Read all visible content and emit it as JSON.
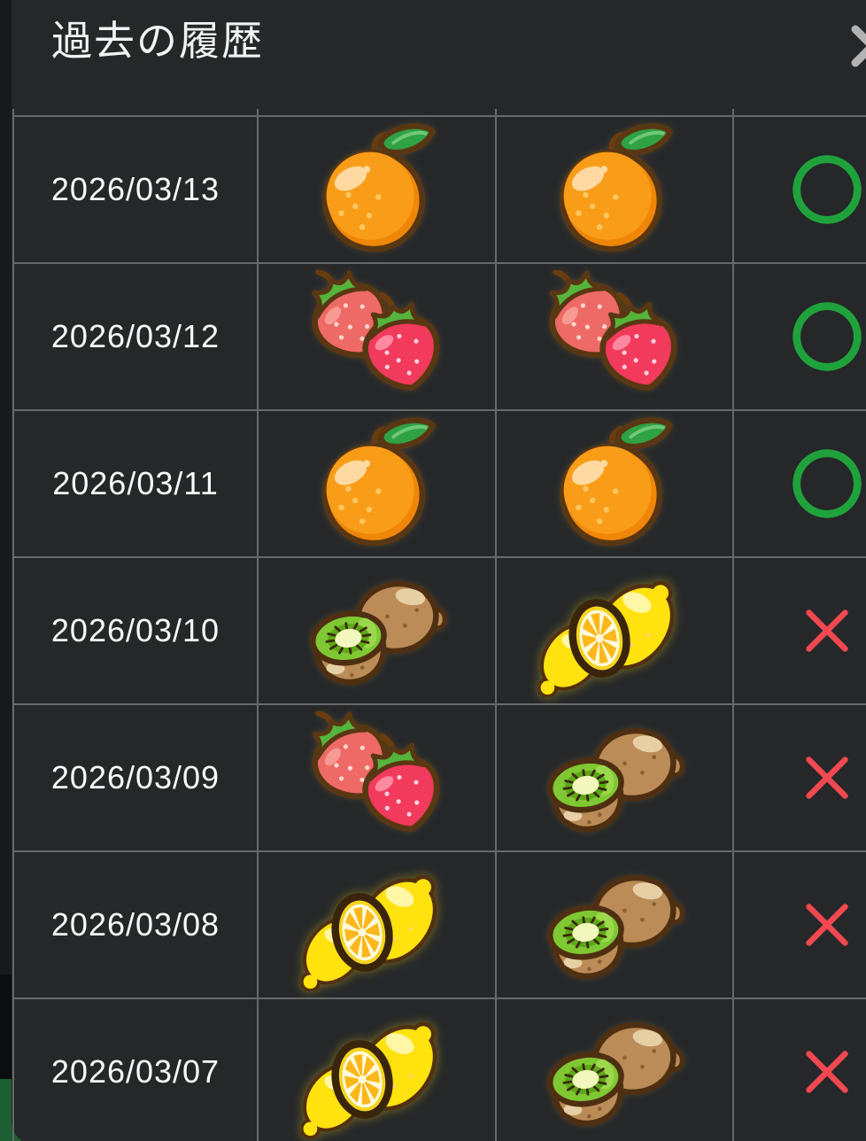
{
  "modal": {
    "title": "過去の履歴",
    "close_icon": "close-x"
  },
  "history": {
    "columns": [
      "date",
      "choice1",
      "choice2",
      "result"
    ],
    "rows": [
      {
        "date": "2026/03/13",
        "choices": [
          "orange",
          "orange"
        ],
        "result": "circle"
      },
      {
        "date": "2026/03/12",
        "choices": [
          "strawberry",
          "strawberry"
        ],
        "result": "circle"
      },
      {
        "date": "2026/03/11",
        "choices": [
          "orange",
          "orange"
        ],
        "result": "circle"
      },
      {
        "date": "2026/03/10",
        "choices": [
          "kiwi",
          "lemon"
        ],
        "result": "cross"
      },
      {
        "date": "2026/03/09",
        "choices": [
          "strawberry",
          "kiwi"
        ],
        "result": "cross"
      },
      {
        "date": "2026/03/08",
        "choices": [
          "lemon",
          "kiwi"
        ],
        "result": "cross"
      },
      {
        "date": "2026/03/07",
        "choices": [
          "lemon",
          "kiwi"
        ],
        "result": "cross"
      }
    ],
    "result_mark_symbols": {
      "circle": "○",
      "cross": "✕"
    }
  },
  "colors": {
    "panel_bg": "#252729",
    "left_backdrop": "#18191a",
    "left_backdrop_dark": "#0c0d0e",
    "backdrop_green": "#1c5f33",
    "grid_line": "#66686a",
    "title_text": "#f2f3f3",
    "date_text": "#fafafa",
    "correct_green": "#1fa23c",
    "incorrect_red": "#f2484f",
    "close_gray": "#b3b3b3"
  }
}
